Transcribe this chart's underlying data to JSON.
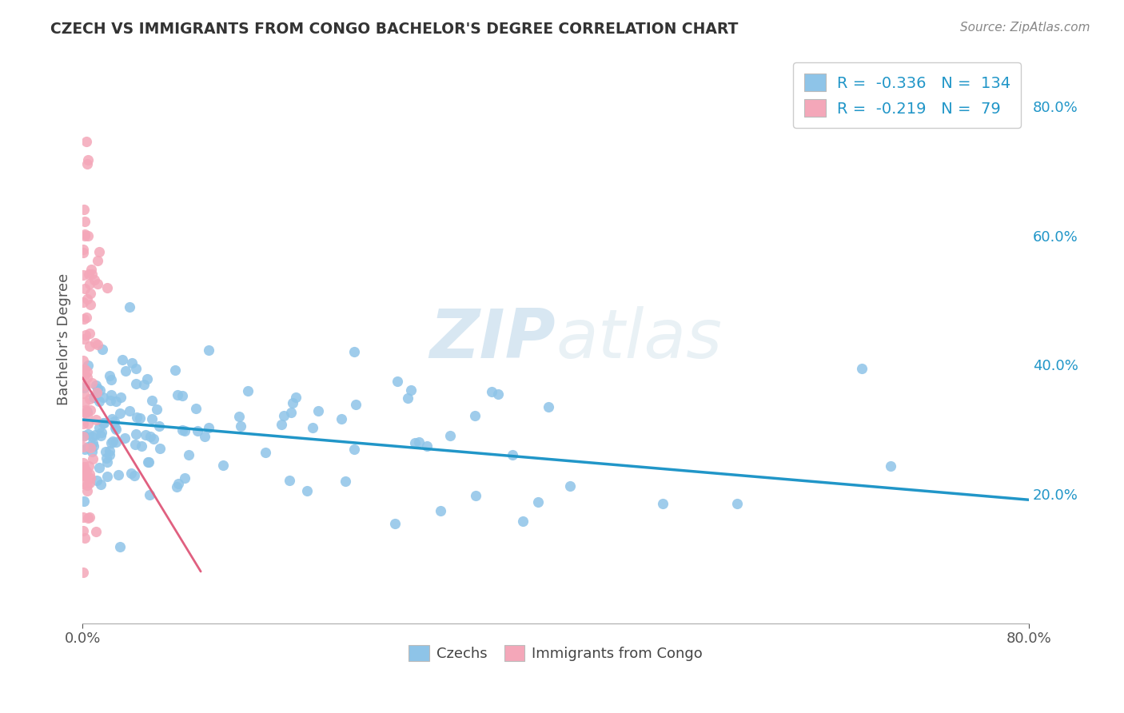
{
  "title": "CZECH VS IMMIGRANTS FROM CONGO BACHELOR'S DEGREE CORRELATION CHART",
  "source": "Source: ZipAtlas.com",
  "ylabel": "Bachelor's Degree",
  "yaxis_ticks": [
    "20.0%",
    "40.0%",
    "60.0%",
    "80.0%"
  ],
  "yaxis_tick_values": [
    0.2,
    0.4,
    0.6,
    0.8
  ],
  "legend_r1": "-0.336",
  "legend_n1": "134",
  "legend_r2": "-0.219",
  "legend_n2": "79",
  "blue_color": "#8ec4e8",
  "pink_color": "#f4a7b9",
  "blue_line_color": "#2196c8",
  "pink_line_color": "#e06080",
  "background_color": "#ffffff",
  "grid_color": "#c8d8e8",
  "watermark_zip": "ZIP",
  "watermark_atlas": "atlas",
  "xlim": [
    0.0,
    0.8
  ],
  "ylim": [
    0.0,
    0.88
  ]
}
